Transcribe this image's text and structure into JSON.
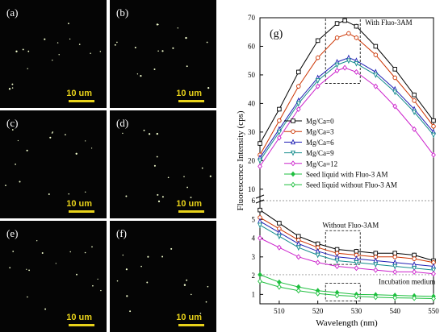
{
  "panels": {
    "micrographs": [
      {
        "label": "(a)",
        "scalebar": "10 um"
      },
      {
        "label": "(b)",
        "scalebar": "10 um"
      },
      {
        "label": "(c)",
        "scalebar": "10 um"
      },
      {
        "label": "(d)",
        "scalebar": "10 um"
      },
      {
        "label": "(e)",
        "scalebar": "10 um"
      },
      {
        "label": "(f)",
        "scalebar": "10 um"
      }
    ],
    "micrograph_colors": {
      "background": "#050505",
      "scalebar": "#e8d21a",
      "label_text": "#ffffff",
      "speck": "#f4ffcf"
    }
  },
  "chart_data": {
    "type": "line",
    "panel_label": "(g)",
    "xlabel": "Wavelength (nm)",
    "ylabel": "Fluorescence Intensity (cps)",
    "x_ticks": [
      510,
      520,
      530,
      540,
      550
    ],
    "xlim": [
      505,
      550
    ],
    "upper_axis": {
      "ylim": [
        6,
        70
      ],
      "ticks": [
        10,
        20,
        30,
        40,
        50,
        60,
        70
      ]
    },
    "lower_axis": {
      "ylim": [
        0.5,
        6
      ],
      "ticks": [
        1,
        2,
        3,
        4,
        5,
        6
      ]
    },
    "annotations": {
      "upper": "With Fluo-3AM",
      "middle": "Without Fluo-3AM",
      "bottom": "Incubation medium"
    },
    "legend_position": "center-right",
    "series": [
      {
        "name": "Mg/Ca=0",
        "color": "#000000",
        "marker": "square-open",
        "upper": {
          "x": [
            505,
            510,
            515,
            520,
            525,
            527,
            530,
            535,
            540,
            545,
            550
          ],
          "y": [
            26,
            38,
            51,
            62,
            68,
            69,
            67,
            60,
            52,
            43,
            34
          ]
        },
        "lower": {
          "x": [
            505,
            510,
            515,
            520,
            525,
            530,
            535,
            540,
            545,
            550
          ],
          "y": [
            5.5,
            4.8,
            4.1,
            3.7,
            3.4,
            3.3,
            3.2,
            3.2,
            3.1,
            2.8
          ]
        }
      },
      {
        "name": "Mg/Ca=3",
        "color": "#cc3300",
        "marker": "circle-open",
        "upper": {
          "x": [
            505,
            510,
            515,
            520,
            525,
            528,
            530,
            535,
            540,
            545,
            550
          ],
          "y": [
            22,
            34,
            46,
            56,
            63,
            64.5,
            63,
            57,
            49,
            41,
            32
          ]
        },
        "lower": {
          "x": [
            505,
            510,
            515,
            520,
            525,
            530,
            535,
            540,
            545,
            550
          ],
          "y": [
            5.1,
            4.5,
            3.9,
            3.5,
            3.2,
            3.1,
            3.0,
            3.0,
            2.9,
            2.7
          ]
        }
      },
      {
        "name": "Mg/Ca=6",
        "color": "#1f1fb4",
        "marker": "triangle-open",
        "upper": {
          "x": [
            505,
            510,
            515,
            520,
            525,
            528,
            530,
            535,
            540,
            545,
            550
          ],
          "y": [
            21,
            31,
            41,
            49,
            54.5,
            56,
            55,
            51,
            45,
            38,
            30
          ]
        },
        "lower": {
          "x": [
            505,
            510,
            515,
            520,
            525,
            530,
            535,
            540,
            545,
            550
          ],
          "y": [
            4.9,
            4.3,
            3.7,
            3.3,
            3.0,
            2.9,
            2.8,
            2.7,
            2.6,
            2.5
          ]
        }
      },
      {
        "name": "Mg/Ca=9",
        "color": "#148c8c",
        "marker": "triangle-down-open",
        "upper": {
          "x": [
            505,
            510,
            515,
            520,
            525,
            528,
            530,
            535,
            540,
            545,
            550
          ],
          "y": [
            20,
            30,
            40,
            48,
            53.5,
            55,
            54,
            50,
            44,
            37,
            29
          ]
        },
        "lower": {
          "x": [
            505,
            510,
            515,
            520,
            525,
            530,
            535,
            540,
            545,
            550
          ],
          "y": [
            4.7,
            4.1,
            3.5,
            3.1,
            2.8,
            2.7,
            2.6,
            2.5,
            2.4,
            2.3
          ]
        }
      },
      {
        "name": "Mg/Ca=12",
        "color": "#cc22cc",
        "marker": "diamond-open",
        "upper": {
          "x": [
            505,
            510,
            515,
            520,
            525,
            527,
            530,
            535,
            540,
            545,
            550
          ],
          "y": [
            18,
            28,
            38,
            46,
            51.5,
            52.5,
            51,
            46,
            39,
            31,
            22
          ]
        },
        "lower": {
          "x": [
            505,
            510,
            515,
            520,
            525,
            530,
            535,
            540,
            545,
            550
          ],
          "y": [
            4.0,
            3.5,
            3.0,
            2.7,
            2.5,
            2.4,
            2.3,
            2.2,
            2.2,
            2.1
          ]
        }
      },
      {
        "name": "Seed liquid with Fluo-3 AM",
        "color": "#1fbf3f",
        "marker": "diamond-filled",
        "lower": {
          "x": [
            505,
            510,
            515,
            520,
            525,
            530,
            535,
            540,
            545,
            550
          ],
          "y": [
            2.05,
            1.65,
            1.4,
            1.2,
            1.1,
            1.0,
            0.98,
            0.95,
            0.92,
            0.9
          ]
        }
      },
      {
        "name": "Seed liquid without Fluo-3 AM",
        "color": "#1fbf3f",
        "marker": "diamond-open",
        "lower": {
          "x": [
            505,
            510,
            515,
            520,
            525,
            530,
            535,
            540,
            545,
            550
          ],
          "y": [
            1.7,
            1.4,
            1.2,
            1.05,
            0.95,
            0.9,
            0.85,
            0.82,
            0.8,
            0.78
          ]
        }
      }
    ]
  }
}
